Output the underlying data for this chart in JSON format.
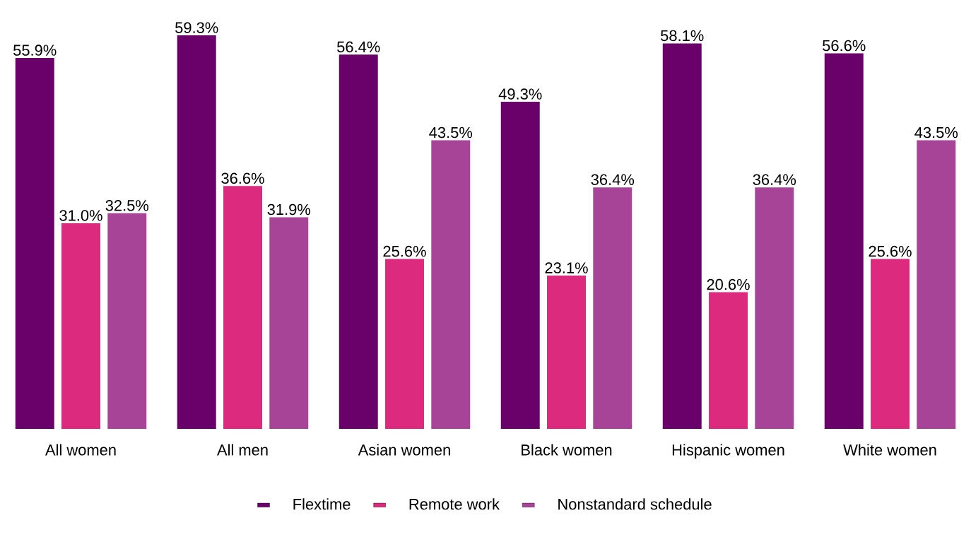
{
  "chart_data": {
    "type": "bar",
    "categories": [
      "All women",
      "All men",
      "Asian women",
      "Black women",
      "Hispanic women",
      "White women"
    ],
    "series": [
      {
        "name": "Flextime",
        "color": "#6a006a",
        "values": [
          55.9,
          59.3,
          56.4,
          49.3,
          58.1,
          56.6
        ],
        "value_labels": [
          "55.9%",
          "59.3%",
          "56.4%",
          "49.3%",
          "58.1%",
          "56.6%"
        ]
      },
      {
        "name": "Remote work",
        "color": "#dc2a7f",
        "values": [
          31.0,
          36.6,
          25.6,
          23.1,
          20.6,
          25.6
        ],
        "value_labels": [
          "31.0%",
          "36.6%",
          "25.6%",
          "23.1%",
          "20.6%",
          "25.6%"
        ]
      },
      {
        "name": "Nonstandard schedule",
        "color": "#a84498",
        "values": [
          32.5,
          31.9,
          43.5,
          36.4,
          36.4,
          43.5
        ],
        "value_labels": [
          "32.5%",
          "31.9%",
          "43.5%",
          "36.4%",
          "36.4%",
          "43.5%"
        ]
      }
    ],
    "legend": "bottom"
  }
}
